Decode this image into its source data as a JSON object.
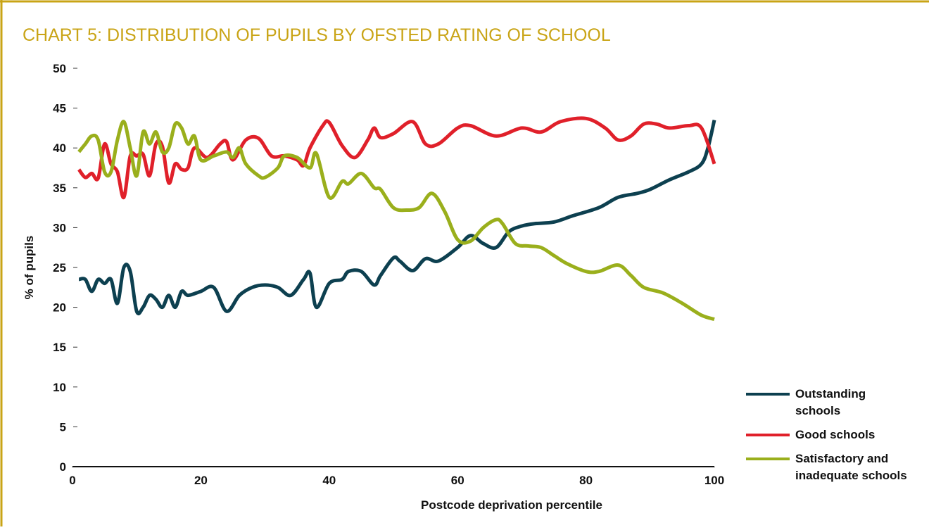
{
  "chart_data": {
    "type": "line",
    "title": "CHART 5: DISTRIBUTION OF PUPILS BY OFSTED RATING OF SCHOOL",
    "x_label": "Postcode deprivation percentile",
    "y_label": "% of pupils",
    "xlim": [
      0,
      100
    ],
    "xticks": [
      0,
      20,
      40,
      60,
      80,
      100
    ],
    "ylim": [
      0,
      50
    ],
    "yticks": [
      0,
      5,
      10,
      15,
      20,
      25,
      30,
      35,
      40,
      45,
      50
    ],
    "series": [
      {
        "name": "Outstanding schools",
        "color": "#0d4050",
        "x": [
          1,
          2,
          3,
          4,
          5,
          6,
          7,
          8,
          9,
          10,
          11,
          12,
          13,
          14,
          15,
          16,
          17,
          18,
          20,
          22,
          24,
          26,
          28,
          30,
          32,
          34,
          36,
          37,
          38,
          40,
          42,
          43,
          45,
          47,
          48,
          50,
          51,
          53,
          55,
          57,
          60,
          62,
          64,
          66,
          68,
          70,
          72,
          75,
          78,
          82,
          85,
          88,
          90,
          93,
          96,
          98,
          99,
          100
        ],
        "values": [
          23.5,
          23.5,
          22,
          23.5,
          23,
          23.5,
          20.5,
          25,
          24.5,
          19.5,
          20,
          21.5,
          21,
          20,
          21.5,
          20,
          22,
          21.5,
          22,
          22.5,
          19.5,
          21.5,
          22.5,
          22.8,
          22.5,
          21.5,
          23.5,
          24.3,
          20,
          23,
          23.5,
          24.5,
          24.5,
          22.8,
          24,
          26.2,
          25.8,
          24.6,
          26.1,
          25.8,
          27.5,
          29,
          28,
          27.5,
          29.5,
          30.2,
          30.5,
          30.7,
          31.5,
          32.5,
          33.8,
          34.3,
          34.8,
          36,
          37,
          38,
          40,
          43.5
        ]
      },
      {
        "name": "Good schools",
        "color": "#e0202a",
        "x": [
          1,
          2,
          3,
          4,
          5,
          6,
          7,
          8,
          9,
          10,
          11,
          12,
          13,
          14,
          15,
          16,
          17,
          18,
          19,
          21,
          23,
          24,
          25,
          27,
          29,
          31,
          33,
          35,
          36,
          37,
          39,
          40,
          42,
          44,
          46,
          47,
          48,
          50,
          53,
          55,
          57,
          60,
          62,
          66,
          70,
          73,
          76,
          80,
          83,
          85,
          87,
          89,
          91,
          93,
          96,
          98,
          100
        ],
        "values": [
          37.3,
          36.3,
          36.8,
          36.2,
          40.5,
          38,
          37,
          33.8,
          39,
          39,
          39.2,
          36.5,
          40.5,
          40.2,
          35.6,
          38,
          37.3,
          37.5,
          40,
          38.8,
          40.5,
          40.8,
          38.5,
          41,
          41.2,
          39,
          39,
          38.5,
          37.8,
          40,
          42.8,
          43.2,
          40.3,
          38.8,
          41,
          42.5,
          41.3,
          41.8,
          43.3,
          40.5,
          40.5,
          42.5,
          42.8,
          41.5,
          42.5,
          42,
          43.3,
          43.7,
          42.5,
          41,
          41.5,
          43,
          43,
          42.5,
          42.8,
          42.5,
          38
        ]
      },
      {
        "name": "Satisfactory and inadequate schools",
        "color": "#9aaf1c",
        "x": [
          1,
          2,
          3,
          4,
          5,
          6,
          7,
          8,
          9,
          10,
          11,
          12,
          13,
          14,
          15,
          16,
          17,
          18,
          19,
          20,
          22,
          24,
          25,
          26,
          27,
          29,
          30,
          32,
          33,
          35,
          37,
          38,
          40,
          42,
          43,
          45,
          47,
          48,
          50,
          52,
          54,
          56,
          58,
          60,
          62,
          64,
          66,
          67,
          69,
          71,
          73,
          75,
          77,
          80,
          82,
          85,
          87,
          89,
          92,
          95,
          98,
          100
        ],
        "values": [
          39.5,
          40.5,
          41.5,
          41,
          37,
          37,
          41,
          43.3,
          40,
          36.5,
          42,
          40.5,
          42,
          39.5,
          40,
          43,
          42.5,
          40.5,
          41.5,
          38.5,
          39,
          39.5,
          38.8,
          40,
          38,
          36.5,
          36.3,
          37.5,
          39,
          38.8,
          37.5,
          39.3,
          33.8,
          35.8,
          35.5,
          36.8,
          35,
          34.8,
          32.5,
          32.2,
          32.5,
          34.3,
          32,
          28.5,
          28.3,
          30,
          31,
          30.5,
          28,
          27.7,
          27.5,
          26.5,
          25.5,
          24.5,
          24.5,
          25.3,
          24,
          22.5,
          21.8,
          20.5,
          19,
          18.5
        ]
      }
    ]
  }
}
